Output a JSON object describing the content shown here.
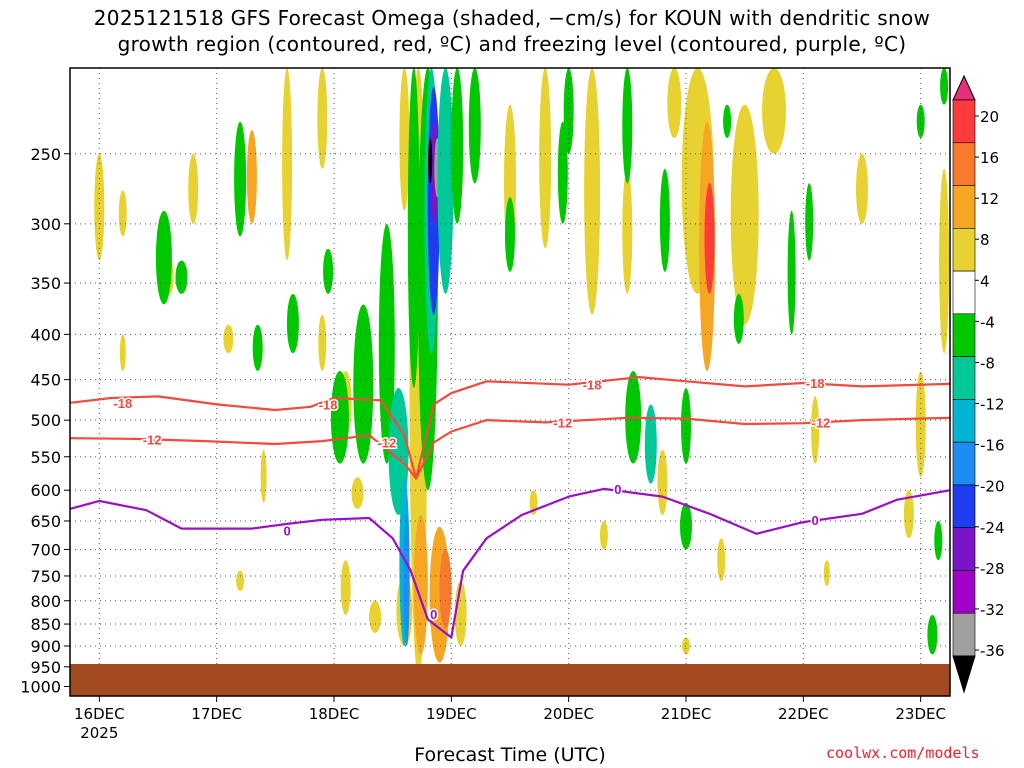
{
  "title": {
    "line1": "2025121518 GFS Forecast Omega (shaded, −cm/s) for KOUN with dendritic snow",
    "line2": "growth region (contoured, red, ºC) and freezing level (contoured, purple, ºC)"
  },
  "credit": "coolwx.com/models",
  "chart_data": {
    "type": "heatmap",
    "xlabel": "Forecast Time (UTC)",
    "ylabel": "",
    "x_ticks": [
      "16DEC",
      "17DEC",
      "18DEC",
      "19DEC",
      "20DEC",
      "21DEC",
      "22DEC",
      "23DEC"
    ],
    "x_tick_year": "2025",
    "xlim_days": [
      15.75,
      23.25
    ],
    "y_ticks": [
      250,
      300,
      350,
      400,
      450,
      500,
      550,
      600,
      650,
      700,
      750,
      800,
      850,
      900,
      950,
      1000
    ],
    "ylim_hpa": [
      200,
      1025
    ],
    "y_scale": "log-pressure",
    "grid": true,
    "colorbar": {
      "labels": [
        "20",
        "16",
        "12",
        "8",
        "4",
        "-4",
        "-8",
        "-12",
        "-16",
        "-20",
        "-24",
        "-28",
        "-32",
        "-36"
      ],
      "colors": [
        "#e8307a",
        "#ff3b3b",
        "#f77a2e",
        "#f5a623",
        "#e8d232",
        "#ffffff",
        "#00c800",
        "#00c896",
        "#00b4d2",
        "#1e8cf0",
        "#1e3cf0",
        "#7a14c8",
        "#a000c8",
        "#a0a0a0",
        "#000000"
      ]
    },
    "series": [
      {
        "name": "-18",
        "color": "#f24a3c",
        "points": [
          [
            15.75,
            478
          ],
          [
            16.1,
            472
          ],
          [
            16.5,
            470
          ],
          [
            17.0,
            480
          ],
          [
            17.5,
            487
          ],
          [
            17.8,
            483
          ],
          [
            18.0,
            472
          ],
          [
            18.4,
            475
          ],
          [
            18.6,
            520
          ],
          [
            18.7,
            582
          ],
          [
            18.85,
            480
          ],
          [
            19.0,
            466
          ],
          [
            19.3,
            452
          ],
          [
            20.0,
            456
          ],
          [
            20.6,
            447
          ],
          [
            21.0,
            452
          ],
          [
            21.5,
            458
          ],
          [
            22.0,
            454
          ],
          [
            22.5,
            458
          ],
          [
            23.25,
            455
          ]
        ]
      },
      {
        "name": "-12",
        "color": "#f24a3c",
        "points": [
          [
            15.75,
            524
          ],
          [
            16.3,
            525
          ],
          [
            16.9,
            528
          ],
          [
            17.5,
            532
          ],
          [
            17.9,
            528
          ],
          [
            18.3,
            520
          ],
          [
            18.6,
            560
          ],
          [
            18.7,
            582
          ],
          [
            18.85,
            530
          ],
          [
            19.0,
            515
          ],
          [
            19.3,
            500
          ],
          [
            19.8,
            503
          ],
          [
            20.5,
            497
          ],
          [
            21.0,
            498
          ],
          [
            21.5,
            505
          ],
          [
            22.0,
            504
          ],
          [
            22.5,
            500
          ],
          [
            23.25,
            497
          ]
        ]
      },
      {
        "name": "0",
        "color": "#9a10c8",
        "points": [
          [
            15.75,
            630
          ],
          [
            16.0,
            617
          ],
          [
            16.4,
            632
          ],
          [
            16.7,
            663
          ],
          [
            17.3,
            663
          ],
          [
            17.6,
            655
          ],
          [
            17.9,
            648
          ],
          [
            18.3,
            645
          ],
          [
            18.5,
            680
          ],
          [
            18.65,
            738
          ],
          [
            18.8,
            840
          ],
          [
            19.0,
            880
          ],
          [
            19.1,
            740
          ],
          [
            19.3,
            680
          ],
          [
            19.6,
            640
          ],
          [
            20.0,
            610
          ],
          [
            20.3,
            598
          ],
          [
            20.8,
            610
          ],
          [
            21.2,
            638
          ],
          [
            21.6,
            672
          ],
          [
            22.0,
            652
          ],
          [
            22.5,
            638
          ],
          [
            22.8,
            615
          ],
          [
            23.25,
            600
          ]
        ]
      }
    ],
    "contour_labels": [
      "-18",
      "-18",
      "-18",
      "-18",
      "-12",
      "-12",
      "-12",
      "-12",
      "0",
      "0",
      "0",
      "0"
    ]
  }
}
